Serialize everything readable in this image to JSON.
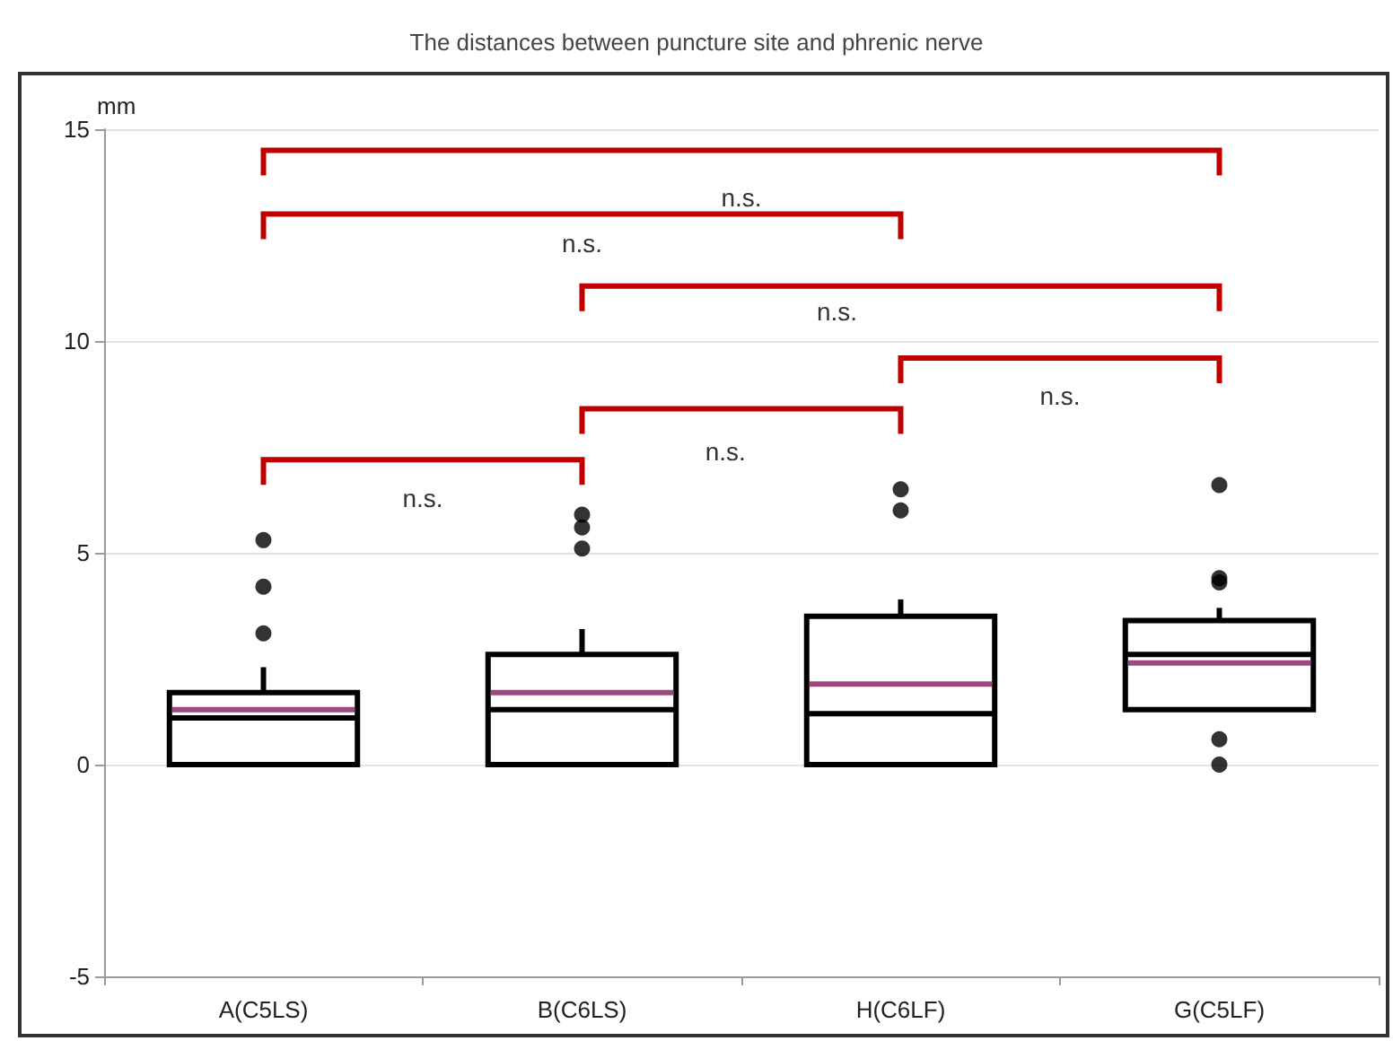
{
  "chart_data": {
    "type": "box",
    "title": "The distances between puncture site and phrenic nerve",
    "ylabel": "mm",
    "categories": [
      "A(C5LS)",
      "B(C6LS)",
      "H(C6LF)",
      "G(C5LF)"
    ],
    "boxes": [
      {
        "low": 0,
        "q1": 0,
        "median": 1.1,
        "q3": 1.7,
        "high": 2.3,
        "mean": 1.3,
        "outliers": [
          3.1,
          4.2,
          5.3
        ]
      },
      {
        "low": 0,
        "q1": 0,
        "median": 1.3,
        "q3": 2.6,
        "high": 3.2,
        "mean": 1.7,
        "outliers": [
          5.1,
          5.6,
          5.9
        ]
      },
      {
        "low": 0,
        "q1": 0,
        "median": 1.2,
        "q3": 3.5,
        "high": 3.9,
        "mean": 1.9,
        "outliers": [
          6.0,
          6.5
        ]
      },
      {
        "low": 1.3,
        "q1": 1.3,
        "median": 2.6,
        "q3": 3.4,
        "high": 3.7,
        "mean": 2.4,
        "outliers": [
          0,
          0.6,
          4.3,
          4.4,
          6.6
        ]
      }
    ],
    "color": "#000000",
    "ylim": [
      -5,
      15
    ],
    "yticks": [
      -5,
      0,
      5,
      10,
      15
    ],
    "grid": "y",
    "annotations": [
      "n.s.",
      "n.s.",
      "n.s.",
      "n.s.",
      "n.s.",
      "n.s."
    ]
  }
}
